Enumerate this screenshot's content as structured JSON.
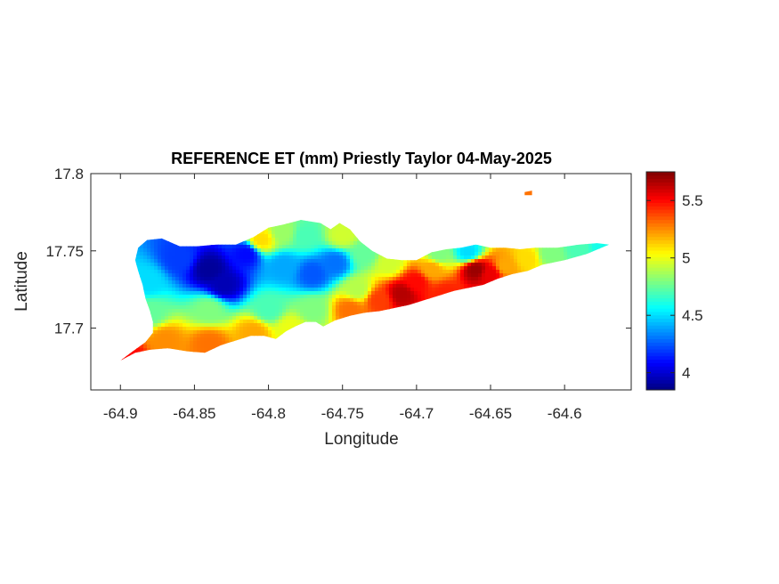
{
  "chart_data": {
    "type": "heatmap",
    "title": "REFERENCE ET (mm) Priestly Taylor 04-May-2025",
    "xlabel": "Longitude",
    "ylabel": "Latitude",
    "xlim": [
      -64.92,
      -64.555
    ],
    "ylim": [
      17.66,
      17.8
    ],
    "xticks": [
      -64.9,
      -64.85,
      -64.8,
      -64.75,
      -64.7,
      -64.65,
      -64.6
    ],
    "xtick_labels": [
      "-64.9",
      "-64.85",
      "-64.8",
      "-64.75",
      "-64.7",
      "-64.65",
      "-64.6"
    ],
    "yticks": [
      17.7,
      17.75,
      17.8
    ],
    "ytick_labels": [
      "17.7",
      "17.75",
      "17.8"
    ],
    "colorbar": {
      "colormap": "jet",
      "range": [
        3.85,
        5.75
      ],
      "ticks": [
        4,
        4.5,
        5,
        5.5
      ],
      "tick_labels": [
        "4",
        "4.5",
        "5",
        "5.5"
      ]
    },
    "grid": false,
    "land_outline": [
      [
        -64.9,
        17.679
      ],
      [
        -64.893,
        17.684
      ],
      [
        -64.883,
        17.691
      ],
      [
        -64.878,
        17.697
      ],
      [
        -64.878,
        17.704
      ],
      [
        -64.88,
        17.711
      ],
      [
        -64.883,
        17.719
      ],
      [
        -64.885,
        17.728
      ],
      [
        -64.888,
        17.737
      ],
      [
        -64.89,
        17.744
      ],
      [
        -64.888,
        17.752
      ],
      [
        -64.882,
        17.757
      ],
      [
        -64.872,
        17.758
      ],
      [
        -64.86,
        17.753
      ],
      [
        -64.848,
        17.753
      ],
      [
        -64.835,
        17.754
      ],
      [
        -64.822,
        17.754
      ],
      [
        -64.81,
        17.759
      ],
      [
        -64.8,
        17.765
      ],
      [
        -64.79,
        17.767
      ],
      [
        -64.778,
        17.77
      ],
      [
        -64.765,
        17.768
      ],
      [
        -64.758,
        17.764
      ],
      [
        -64.752,
        17.768
      ],
      [
        -64.745,
        17.764
      ],
      [
        -64.738,
        17.756
      ],
      [
        -64.73,
        17.75
      ],
      [
        -64.72,
        17.745
      ],
      [
        -64.71,
        17.744
      ],
      [
        -64.7,
        17.744
      ],
      [
        -64.69,
        17.749
      ],
      [
        -64.68,
        17.751
      ],
      [
        -64.67,
        17.752
      ],
      [
        -64.66,
        17.754
      ],
      [
        -64.65,
        17.752
      ],
      [
        -64.64,
        17.752
      ],
      [
        -64.63,
        17.751
      ],
      [
        -64.62,
        17.752
      ],
      [
        -64.605,
        17.752
      ],
      [
        -64.59,
        17.754
      ],
      [
        -64.578,
        17.755
      ],
      [
        -64.57,
        17.754
      ],
      [
        -64.585,
        17.748
      ],
      [
        -64.6,
        17.744
      ],
      [
        -64.615,
        17.741
      ],
      [
        -64.625,
        17.737
      ],
      [
        -64.635,
        17.735
      ],
      [
        -64.645,
        17.732
      ],
      [
        -64.655,
        17.728
      ],
      [
        -64.665,
        17.726
      ],
      [
        -64.675,
        17.724
      ],
      [
        -64.685,
        17.721
      ],
      [
        -64.695,
        17.718
      ],
      [
        -64.705,
        17.715
      ],
      [
        -64.715,
        17.713
      ],
      [
        -64.725,
        17.711
      ],
      [
        -64.735,
        17.71
      ],
      [
        -64.745,
        17.708
      ],
      [
        -64.755,
        17.705
      ],
      [
        -64.763,
        17.701
      ],
      [
        -64.768,
        17.704
      ],
      [
        -64.775,
        17.704
      ],
      [
        -64.782,
        17.701
      ],
      [
        -64.788,
        17.698
      ],
      [
        -64.795,
        17.693
      ],
      [
        -64.803,
        17.695
      ],
      [
        -64.812,
        17.695
      ],
      [
        -64.822,
        17.692
      ],
      [
        -64.832,
        17.689
      ],
      [
        -64.843,
        17.684
      ],
      [
        -64.855,
        17.685
      ],
      [
        -64.868,
        17.687
      ],
      [
        -64.88,
        17.686
      ],
      [
        -64.89,
        17.684
      ]
    ],
    "islet": [
      [
        -64.627,
        17.788
      ],
      [
        -64.622,
        17.789
      ],
      [
        -64.622,
        17.786
      ],
      [
        -64.627,
        17.786
      ]
    ],
    "value_field_anchors": [
      {
        "lon": -64.895,
        "lat": 17.682,
        "value": 5.5
      },
      {
        "lon": -64.87,
        "lat": 17.692,
        "value": 5.25
      },
      {
        "lon": -64.84,
        "lat": 17.69,
        "value": 5.3
      },
      {
        "lon": -64.81,
        "lat": 17.697,
        "value": 5.2
      },
      {
        "lon": -64.785,
        "lat": 17.7,
        "value": 5.0
      },
      {
        "lon": -64.88,
        "lat": 17.71,
        "value": 4.75
      },
      {
        "lon": -64.84,
        "lat": 17.712,
        "value": 4.8
      },
      {
        "lon": -64.8,
        "lat": 17.712,
        "value": 4.7
      },
      {
        "lon": -64.77,
        "lat": 17.712,
        "value": 4.8
      },
      {
        "lon": -64.882,
        "lat": 17.73,
        "value": 4.5
      },
      {
        "lon": -64.86,
        "lat": 17.745,
        "value": 4.2
      },
      {
        "lon": -64.84,
        "lat": 17.738,
        "value": 3.9
      },
      {
        "lon": -64.83,
        "lat": 17.728,
        "value": 3.95
      },
      {
        "lon": -64.815,
        "lat": 17.748,
        "value": 4.1
      },
      {
        "lon": -64.79,
        "lat": 17.74,
        "value": 4.4
      },
      {
        "lon": -64.77,
        "lat": 17.735,
        "value": 4.25
      },
      {
        "lon": -64.755,
        "lat": 17.742,
        "value": 4.3
      },
      {
        "lon": -64.79,
        "lat": 17.762,
        "value": 4.85
      },
      {
        "lon": -64.775,
        "lat": 17.76,
        "value": 4.7
      },
      {
        "lon": -64.805,
        "lat": 17.757,
        "value": 5.1
      },
      {
        "lon": -64.75,
        "lat": 17.76,
        "value": 4.95
      },
      {
        "lon": -64.74,
        "lat": 17.725,
        "value": 4.9
      },
      {
        "lon": -64.745,
        "lat": 17.712,
        "value": 5.3
      },
      {
        "lon": -64.725,
        "lat": 17.718,
        "value": 5.4
      },
      {
        "lon": -64.71,
        "lat": 17.722,
        "value": 5.65
      },
      {
        "lon": -64.7,
        "lat": 17.73,
        "value": 5.5
      },
      {
        "lon": -64.69,
        "lat": 17.738,
        "value": 5.2
      },
      {
        "lon": -64.68,
        "lat": 17.722,
        "value": 5.45
      },
      {
        "lon": -64.66,
        "lat": 17.738,
        "value": 5.7
      },
      {
        "lon": -64.65,
        "lat": 17.735,
        "value": 5.55
      },
      {
        "lon": -64.64,
        "lat": 17.74,
        "value": 5.2
      },
      {
        "lon": -64.665,
        "lat": 17.749,
        "value": 4.5
      },
      {
        "lon": -64.685,
        "lat": 17.748,
        "value": 4.8
      },
      {
        "lon": -64.625,
        "lat": 17.745,
        "value": 5.1
      },
      {
        "lon": -64.61,
        "lat": 17.748,
        "value": 4.8
      },
      {
        "lon": -64.59,
        "lat": 17.752,
        "value": 4.7
      },
      {
        "lon": -64.575,
        "lat": 17.754,
        "value": 4.6
      },
      {
        "lon": -64.718,
        "lat": 17.742,
        "value": 4.95
      },
      {
        "lon": -64.735,
        "lat": 17.748,
        "value": 4.75
      }
    ]
  }
}
